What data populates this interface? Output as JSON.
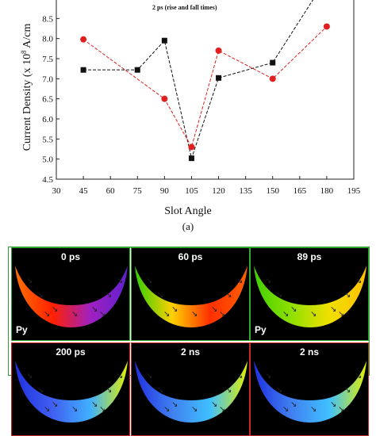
{
  "chart_data": {
    "type": "line",
    "xlabel": "Slot Angle",
    "ylabel": "Current Density (x 10",
    "ylabel_exp": "8",
    "ylabel_unit": " A/cm",
    "annotation": "2 ps (rise and fall times)",
    "caption": "(a)",
    "xlim": [
      30,
      195
    ],
    "ylim": [
      4.5,
      9.0
    ],
    "x_ticks": [
      30,
      45,
      60,
      75,
      90,
      105,
      120,
      135,
      150,
      165,
      180,
      195
    ],
    "y_ticks": [
      4.5,
      5.0,
      5.5,
      6.0,
      6.5,
      7.0,
      7.5,
      8.0,
      8.5
    ],
    "series": [
      {
        "color": "#111111",
        "marker": "square",
        "points": [
          [
            45,
            7.22
          ],
          [
            75,
            7.22
          ],
          [
            90,
            7.95
          ],
          [
            105,
            5.02
          ],
          [
            120,
            7.02
          ],
          [
            150,
            7.4
          ],
          [
            180,
            9.5
          ]
        ]
      },
      {
        "color": "#e02020",
        "marker": "circle",
        "points": [
          [
            45,
            7.98
          ],
          [
            90,
            6.5
          ],
          [
            105,
            5.3
          ],
          [
            120,
            7.7
          ],
          [
            150,
            7.0
          ],
          [
            180,
            8.3
          ]
        ]
      }
    ]
  },
  "snapshots": [
    {
      "time": "0 ps",
      "layer": "Py",
      "colors": [
        "#ff7000",
        "#ff2000",
        "#a020c0",
        "#6020d0"
      ],
      "frame": "green"
    },
    {
      "time": "60 ps",
      "layer": "",
      "colors": [
        "#30d000",
        "#ffd000",
        "#ff3000",
        "#ff6000"
      ],
      "frame": "green"
    },
    {
      "time": "89 ps",
      "layer": "Py",
      "colors": [
        "#40d000",
        "#90e000",
        "#f0e000",
        "#ffc000"
      ],
      "frame": "green"
    },
    {
      "time": "200 ps",
      "layer": "",
      "colors": [
        "#2030e0",
        "#4060f0",
        "#40b0ff",
        "#e0f000"
      ],
      "frame": "red"
    },
    {
      "time": "2 ns",
      "layer": "",
      "colors": [
        "#2030e0",
        "#4080f0",
        "#40c0ff",
        "#e0f000"
      ],
      "frame": "red"
    },
    {
      "time": "2 ns",
      "layer": "",
      "colors": [
        "#2030e0",
        "#4080f0",
        "#40c0ff",
        "#e0f000"
      ],
      "frame": "red"
    }
  ]
}
